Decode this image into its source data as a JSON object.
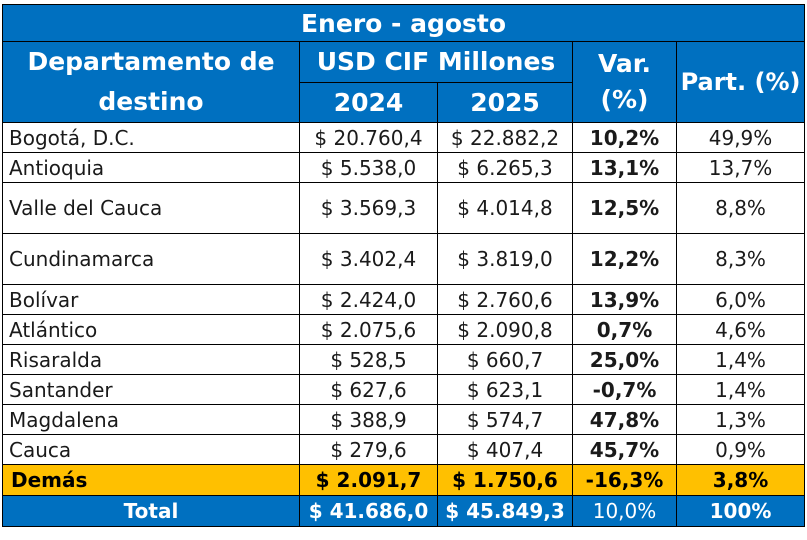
{
  "title": "Enero - agosto",
  "header": {
    "department": "Departamento de destino",
    "usd": "USD CIF Millones",
    "year1": "2024",
    "year2": "2025",
    "var": "Var. (%)",
    "part": "Part. (%)"
  },
  "rows": [
    {
      "name": "Bogotá, D.C.",
      "v2024": "$ 20.760,4",
      "v2025": "$ 22.882,2",
      "var": "10,2%",
      "part": "49,9%",
      "tall": false
    },
    {
      "name": "Antioquia",
      "v2024": "$ 5.538,0",
      "v2025": "$ 6.265,3",
      "var": "13,1%",
      "part": "13,7%",
      "tall": false
    },
    {
      "name": "Valle del Cauca",
      "v2024": "$ 3.569,3",
      "v2025": "$ 4.014,8",
      "var": "12,5%",
      "part": "8,8%",
      "tall": true
    },
    {
      "name": "Cundinamarca",
      "v2024": "$ 3.402,4",
      "v2025": "$ 3.819,0",
      "var": "12,2%",
      "part": "8,3%",
      "tall": true
    },
    {
      "name": "Bolívar",
      "v2024": "$ 2.424,0",
      "v2025": "$ 2.760,6",
      "var": "13,9%",
      "part": "6,0%",
      "tall": false
    },
    {
      "name": "Atlántico",
      "v2024": "$ 2.075,6",
      "v2025": "$ 2.090,8",
      "var": "0,7%",
      "part": "4,6%",
      "tall": false
    },
    {
      "name": "Risaralda",
      "v2024": "$ 528,5",
      "v2025": "$ 660,7",
      "var": "25,0%",
      "part": "1,4%",
      "tall": false
    },
    {
      "name": "Santander",
      "v2024": "$ 627,6",
      "v2025": "$ 623,1",
      "var": "-0,7%",
      "part": "1,4%",
      "tall": false
    },
    {
      "name": "Magdalena",
      "v2024": "$ 388,9",
      "v2025": "$ 574,7",
      "var": "47,8%",
      "part": "1,3%",
      "tall": false
    },
    {
      "name": "Cauca",
      "v2024": "$ 279,6",
      "v2025": "$ 407,4",
      "var": "45,7%",
      "part": "0,9%",
      "tall": false
    }
  ],
  "demas": {
    "name": "Demás",
    "v2024": "$ 2.091,7",
    "v2025": "$ 1.750,6",
    "var": "-16,3%",
    "part": "3,8%"
  },
  "total": {
    "name": "Total",
    "v2024": "$ 41.686,0",
    "v2025": "$ 45.849,3",
    "var": "10,0%",
    "part": "100%"
  },
  "colors": {
    "gold": "#ffc000",
    "blue": "#0070c0"
  }
}
